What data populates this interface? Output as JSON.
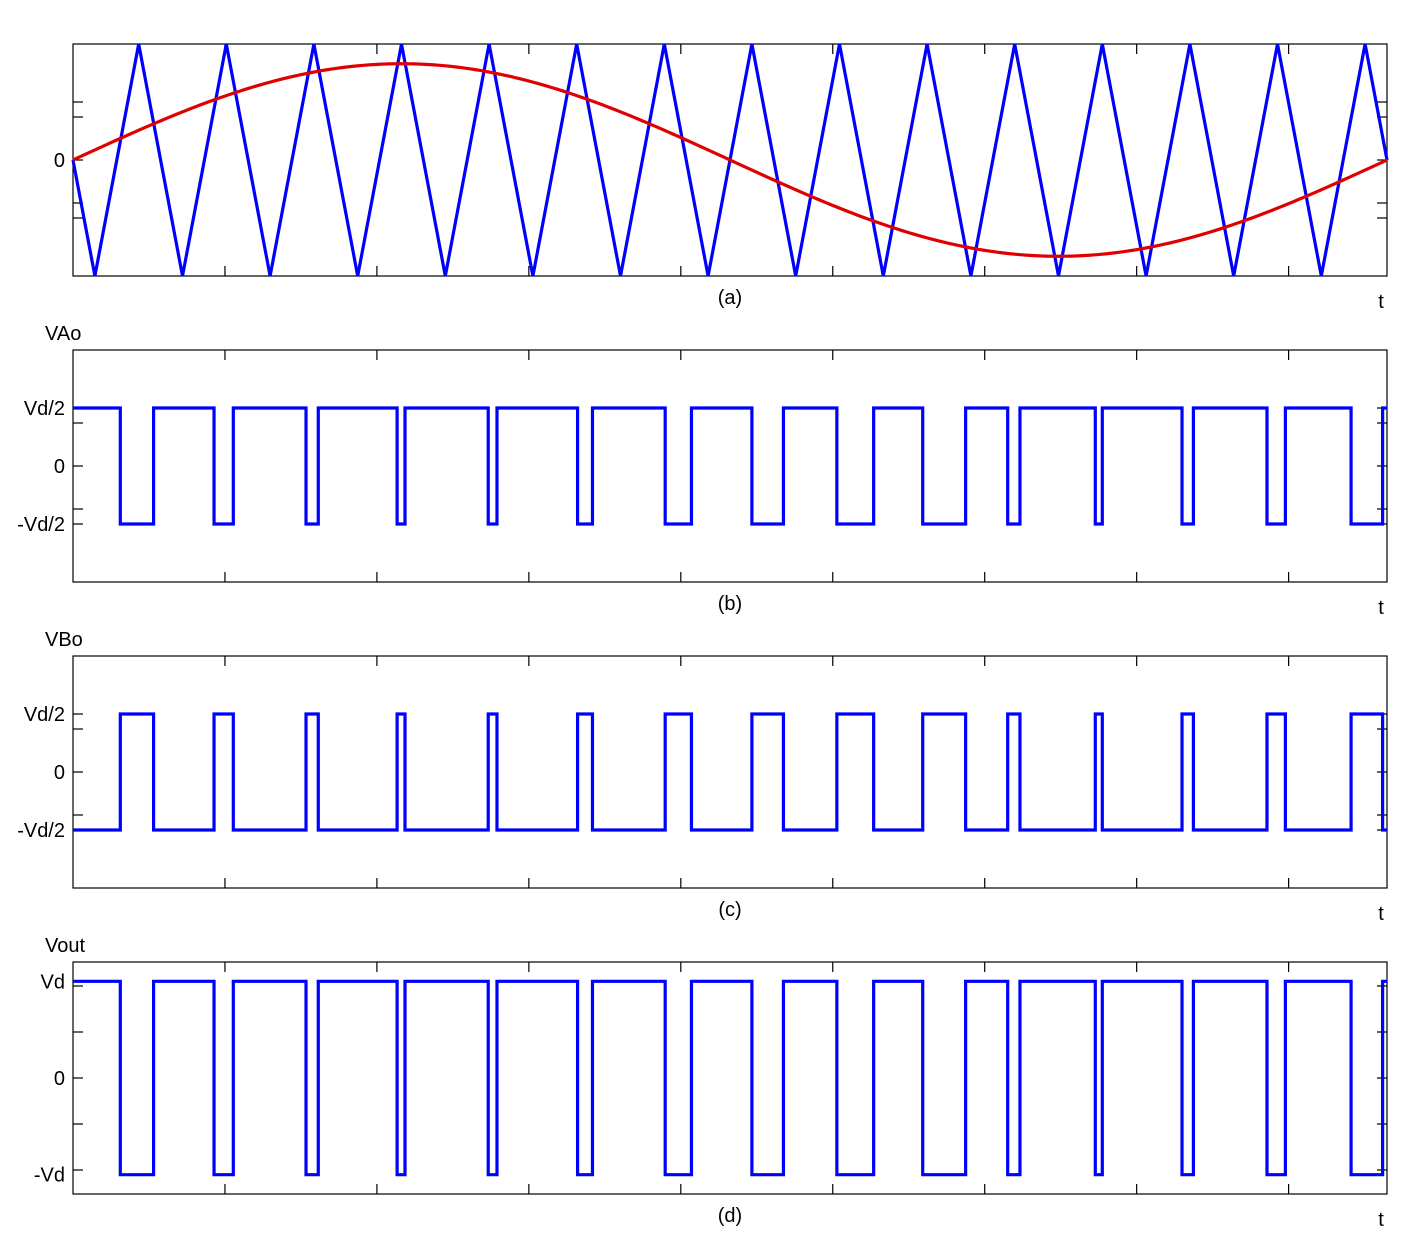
{
  "chart_data": [
    {
      "type": "line",
      "caption": "(a)",
      "xlabel": "t",
      "ylabel": "",
      "xlim": [
        0,
        15
      ],
      "ylim": [
        -1,
        1
      ],
      "yticks": [
        {
          "value": 0,
          "label": "0"
        }
      ],
      "series": [
        {
          "color": "#0000ff",
          "kind": "carrier-triangle",
          "x": [
            0,
            0.25,
            0.75,
            1.25,
            1.75,
            2.25,
            2.75,
            3.25,
            3.75,
            4.25,
            4.75,
            5.25,
            5.75,
            6.25,
            6.75,
            7.25,
            7.75,
            8.25,
            8.75,
            9.25,
            9.75,
            10.25,
            10.75,
            11.25,
            11.75,
            12.25,
            12.75,
            13.25,
            13.75,
            14.25,
            14.75,
            15
          ],
          "y": [
            0,
            -1,
            1,
            -1,
            1,
            -1,
            1,
            -1,
            1,
            -1,
            1,
            -1,
            1,
            -1,
            1,
            -1,
            1,
            -1,
            1,
            -1,
            1,
            -1,
            1,
            -1,
            1,
            -1,
            1,
            -1,
            1,
            -1,
            1,
            0
          ]
        },
        {
          "color": "#e00000",
          "kind": "reference-sine",
          "x": [
            0,
            0.75,
            1.5,
            2.25,
            3.0,
            3.75,
            4.5,
            5.25,
            6.0,
            6.75,
            7.5,
            8.25,
            9.0,
            9.75,
            10.5,
            11.25,
            12.0,
            12.75,
            13.5,
            14.25,
            15.0
          ],
          "y": [
            0,
            0.26,
            0.49,
            0.67,
            0.79,
            0.83,
            0.79,
            0.67,
            0.49,
            0.26,
            0,
            -0.26,
            -0.49,
            -0.67,
            -0.79,
            -0.83,
            -0.79,
            -0.67,
            -0.49,
            -0.26,
            0
          ]
        }
      ]
    },
    {
      "type": "line",
      "caption": "(b)",
      "title": "VAo",
      "xlabel": "t",
      "xlim": [
        0,
        15
      ],
      "ylim": [
        -1,
        1
      ],
      "yticks": [
        {
          "value": 0.5,
          "label": "Vd/2"
        },
        {
          "value": 0,
          "label": "0"
        },
        {
          "value": -0.5,
          "label": "-Vd/2"
        }
      ],
      "series": [
        {
          "color": "#0000ff",
          "kind": "step",
          "low": -0.5,
          "high": 0.5,
          "start_level": 0.5,
          "switch_x": [
            0.54,
            0.92,
            1.61,
            1.83,
            2.66,
            2.8,
            3.7,
            3.79,
            4.74,
            4.84,
            5.76,
            5.93,
            6.76,
            7.06,
            7.75,
            8.11,
            8.72,
            9.14,
            9.7,
            10.19,
            10.67,
            10.81,
            11.67,
            11.75,
            12.66,
            12.79,
            13.63,
            13.84,
            14.59,
            14.95
          ]
        }
      ]
    },
    {
      "type": "line",
      "caption": "(c)",
      "title": "VBo",
      "xlabel": "t",
      "xlim": [
        0,
        15
      ],
      "ylim": [
        -1,
        1
      ],
      "yticks": [
        {
          "value": 0.5,
          "label": "Vd/2"
        },
        {
          "value": 0,
          "label": "0"
        },
        {
          "value": -0.5,
          "label": "-Vd/2"
        }
      ],
      "series": [
        {
          "color": "#0000ff",
          "kind": "step",
          "low": -0.5,
          "high": 0.5,
          "start_level": -0.5,
          "switch_x": [
            0.54,
            0.92,
            1.61,
            1.83,
            2.66,
            2.8,
            3.7,
            3.79,
            4.74,
            4.84,
            5.76,
            5.93,
            6.76,
            7.06,
            7.75,
            8.11,
            8.72,
            9.14,
            9.7,
            10.19,
            10.67,
            10.81,
            11.67,
            11.75,
            12.66,
            12.79,
            13.63,
            13.84,
            14.59,
            14.95
          ]
        }
      ]
    },
    {
      "type": "line",
      "caption": "(d)",
      "title": "Vout",
      "xlabel": "t",
      "xlim": [
        0,
        15
      ],
      "ylim": [
        -1.2,
        1.2
      ],
      "yticks": [
        {
          "value": 1,
          "label": "Vd"
        },
        {
          "value": 0,
          "label": "0"
        },
        {
          "value": -1,
          "label": "-Vd"
        }
      ],
      "series": [
        {
          "color": "#0000ff",
          "kind": "step",
          "low": -1,
          "high": 1,
          "start_level": 1,
          "switch_x": [
            0.54,
            0.92,
            1.61,
            1.83,
            2.66,
            2.8,
            3.7,
            3.79,
            4.74,
            4.84,
            5.76,
            5.93,
            6.76,
            7.06,
            7.75,
            8.11,
            8.72,
            9.14,
            9.7,
            10.19,
            10.67,
            10.81,
            11.67,
            11.75,
            12.66,
            12.79,
            13.63,
            13.84,
            14.59,
            14.95
          ]
        }
      ]
    }
  ]
}
